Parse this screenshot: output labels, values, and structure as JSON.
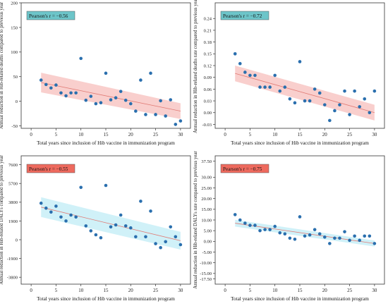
{
  "chart_data": [
    {
      "type": "scatter",
      "title": "",
      "xlabel": "Total years since inclusion of Hib vaccine in immunization program",
      "ylabel": "Annual reduction in Hib-related deaths compared to previous year",
      "annotation": "Pearson's r = −0.56",
      "annotation_color": "#6dc5c9",
      "band_color": "#f4a8a4",
      "line_color": "#e07a74",
      "point_color": "#2a6fae",
      "xlim": [
        -2,
        32
      ],
      "ylim": [
        -55,
        200
      ],
      "xticks": [
        "0",
        "5",
        "10",
        "15",
        "20",
        "25",
        "30"
      ],
      "yticks": [
        "-50",
        "0",
        "50",
        "100",
        "150",
        "200"
      ],
      "x": [
        2,
        3,
        4,
        5,
        6,
        7,
        8,
        9,
        10,
        11,
        12,
        13,
        14,
        15,
        16,
        17,
        18,
        19,
        20,
        21,
        22,
        23,
        24,
        25,
        26,
        27,
        28,
        29,
        30
      ],
      "y": [
        43,
        34,
        27,
        33,
        17,
        11,
        17,
        17,
        87,
        2,
        10,
        -5,
        -3,
        57,
        3,
        7,
        20,
        2,
        -5,
        -20,
        43,
        -27,
        57,
        -27,
        1,
        -30,
        3,
        -47,
        -40
      ],
      "fit": [
        38,
        -20
      ],
      "band_halfwidth": [
        20,
        16
      ]
    },
    {
      "type": "scatter",
      "title": "",
      "xlabel": "Total years since inclusion of Hib vaccine in immunization program",
      "ylabel": "Annual reduction in Hib-related deaths rate compared to previous year",
      "annotation": "Pearson's r = −0.72",
      "annotation_color": "#6dc5c9",
      "band_color": "#f4a8a4",
      "line_color": "#e07a74",
      "point_color": "#2a6fae",
      "xlim": [
        -2,
        32
      ],
      "ylim": [
        -0.04,
        0.28
      ],
      "xticks": [
        "0",
        "5",
        "10",
        "15",
        "20",
        "25",
        "30"
      ],
      "yticks": [
        "-0.03",
        "0.00",
        "0.03",
        "0.06",
        "0.09",
        "0.12",
        "0.15",
        "0.18",
        "0.21",
        "0.24"
      ],
      "x": [
        2,
        3,
        4,
        5,
        6,
        7,
        8,
        9,
        10,
        11,
        12,
        13,
        14,
        15,
        16,
        17,
        18,
        19,
        20,
        21,
        22,
        23,
        24,
        25,
        26,
        27,
        28,
        29,
        30
      ],
      "y": [
        0.15,
        0.125,
        0.103,
        0.095,
        0.095,
        0.065,
        0.065,
        0.065,
        0.095,
        0.055,
        0.065,
        0.035,
        0.025,
        0.13,
        0.03,
        0.03,
        0.06,
        0.05,
        0.02,
        -0.02,
        0.005,
        0.02,
        0.055,
        -0.005,
        0.055,
        0.015,
        0.035,
        0.0,
        0.055
      ],
      "fit": [
        0.1,
        0.0
      ],
      "band_halfwidth": [
        0.02,
        0.02
      ]
    },
    {
      "type": "scatter",
      "title": "",
      "xlabel": "Total years since inclusion of Hib vaccine in immunization program",
      "ylabel": "Annual reduction in Hib-related DALYs compared to previous year",
      "annotation": "Pearson's r = −0.55",
      "annotation_color": "#ee6a5e",
      "band_color": "#a9e6f3",
      "line_color": "#e07a74",
      "point_color": "#2a6fae",
      "xlim": [
        -2,
        32
      ],
      "ylim": [
        -4500,
        8500
      ],
      "xticks": [
        "0",
        "5",
        "10",
        "15",
        "20",
        "25",
        "30"
      ],
      "yticks": [
        "-3800",
        "-1900",
        "0",
        "1900",
        "3800",
        "5700",
        "7600"
      ],
      "x": [
        2,
        3,
        4,
        5,
        6,
        7,
        8,
        9,
        10,
        11,
        12,
        13,
        14,
        15,
        16,
        17,
        18,
        19,
        20,
        21,
        22,
        23,
        24,
        25,
        26,
        27,
        28,
        29,
        30
      ],
      "y": [
        3700,
        3200,
        2800,
        3400,
        2300,
        1900,
        2500,
        2300,
        5300,
        1400,
        900,
        500,
        200,
        5500,
        1300,
        1500,
        2500,
        1400,
        1200,
        300,
        3900,
        300,
        2900,
        -400,
        -800,
        -200,
        1300,
        300,
        -500
      ],
      "fit": [
        3300,
        -100
      ],
      "band_halfwidth": [
        1000,
        900
      ]
    },
    {
      "type": "scatter",
      "title": "",
      "xlabel": "Total years since inclusion of Hib vaccine in immunization program",
      "ylabel": "Annual reduction in Hib-related DALYs rate compared to previous year",
      "annotation": "Pearson's r = −0.75",
      "annotation_color": "#ee6a5e",
      "band_color": "#a9e6f3",
      "line_color": "#e07a74",
      "point_color": "#2a6fae",
      "xlim": [
        -2,
        32
      ],
      "ylim": [
        -20,
        40
      ],
      "xticks": [
        "0",
        "5",
        "10",
        "15",
        "20",
        "25",
        "30"
      ],
      "yticks": [
        "-17.50",
        "-15.00",
        "-10.00",
        "-5.00",
        "0.00",
        "5.00",
        "10.00",
        "15.00",
        "20.00",
        "25.00",
        "30.00",
        "37.50"
      ],
      "ytickvals": [
        -17.5,
        -15,
        -10,
        -5,
        0,
        5,
        10,
        15,
        20,
        25,
        30,
        37.5
      ],
      "x": [
        2,
        3,
        4,
        5,
        6,
        7,
        8,
        9,
        10,
        11,
        12,
        13,
        14,
        15,
        16,
        17,
        18,
        19,
        20,
        21,
        22,
        23,
        24,
        25,
        26,
        27,
        28,
        29,
        30
      ],
      "y": [
        12.5,
        10,
        8.5,
        7.5,
        7.5,
        5,
        5.5,
        5.5,
        7,
        4,
        3.5,
        1.5,
        1,
        11.5,
        2.5,
        3,
        5.5,
        3.5,
        2,
        -1,
        1.5,
        1.5,
        4.5,
        0.5,
        2.5,
        0.5,
        2.5,
        2.5,
        -1
      ],
      "fit": [
        8.5,
        -1
      ],
      "band_halfwidth": [
        1.6,
        1.4
      ]
    }
  ]
}
